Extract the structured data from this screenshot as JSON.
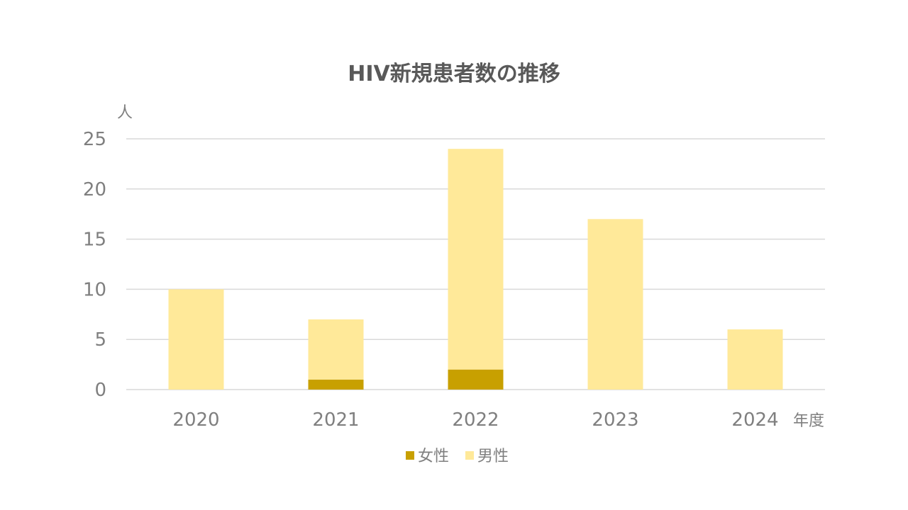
{
  "chart_data": {
    "type": "bar",
    "stacked": true,
    "title": "HIV新規患者数の推移",
    "ylabel": "人",
    "xlabel": "年度",
    "categories": [
      "2020",
      "2021",
      "2022",
      "2023",
      "2024"
    ],
    "series": [
      {
        "name": "女性",
        "values": [
          0,
          1,
          2,
          0,
          0
        ],
        "color": "#C8A000"
      },
      {
        "name": "男性",
        "values": [
          10,
          6,
          22,
          17,
          6
        ],
        "color": "#FFE999"
      }
    ],
    "ylim": [
      0,
      25
    ],
    "yticks": [
      "0",
      "5",
      "10",
      "15",
      "20",
      "25"
    ],
    "grid": true,
    "legend_position": "bottom"
  }
}
